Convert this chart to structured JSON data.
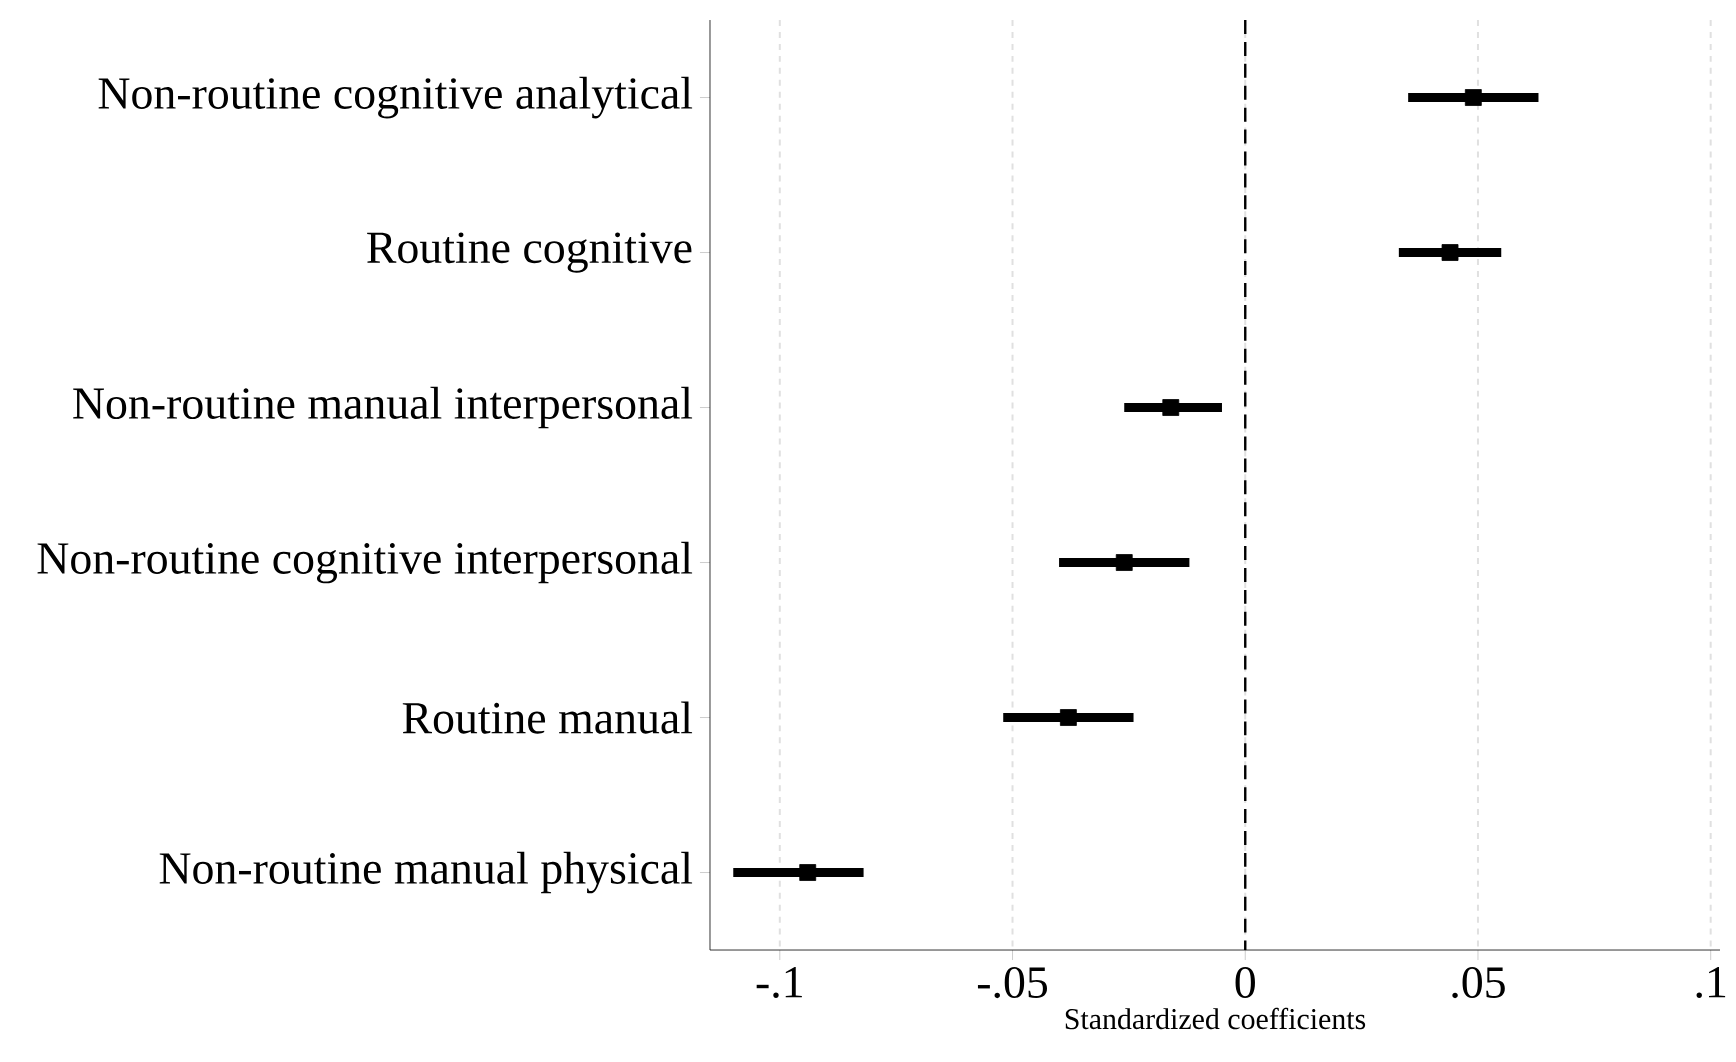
{
  "chart_data": {
    "type": "scatter",
    "orientation": "horizontal",
    "xlabel": "Standardized coefficients",
    "categories": [
      "Non-routine cognitive analytical",
      "Routine cognitive",
      "Non-routine manual interpersonal",
      "Non-routine cognitive interpersonal",
      "Routine manual",
      "Non-routine manual physical"
    ],
    "values": [
      0.049,
      0.044,
      -0.016,
      -0.026,
      -0.038,
      -0.094
    ],
    "errors": [
      [
        0.035,
        0.063
      ],
      [
        0.033,
        0.055
      ],
      [
        -0.026,
        -0.005
      ],
      [
        -0.04,
        -0.012
      ],
      [
        -0.052,
        -0.024
      ],
      [
        -0.11,
        -0.082
      ]
    ],
    "color": "#000000",
    "marker": "square",
    "xlim": [
      -0.115,
      0.102
    ],
    "xticks": [
      {
        "value": -0.1,
        "label": "-.1"
      },
      {
        "value": -0.05,
        "label": "-.05"
      },
      {
        "value": 0,
        "label": "0"
      },
      {
        "value": 0.05,
        "label": ".05"
      },
      {
        "value": 0.1,
        "label": ".1"
      }
    ],
    "grid": "x",
    "ref_lines": [
      {
        "axis": "x",
        "value": 0,
        "line_style": "dashed",
        "color": "#000000"
      }
    ]
  }
}
